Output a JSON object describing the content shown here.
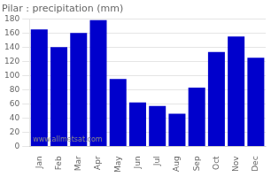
{
  "chart_data": {
    "type": "bar",
    "title": "Pilar : precipitation (mm)",
    "categories": [
      "Jan",
      "Feb",
      "Mar",
      "Apr",
      "May",
      "Jun",
      "Jul",
      "Aug",
      "Sep",
      "Oct",
      "Nov",
      "Dec"
    ],
    "values": [
      165,
      140,
      160,
      178,
      95,
      62,
      57,
      46,
      83,
      133,
      155,
      125
    ],
    "color": "#0000cc",
    "ylim": [
      0,
      180
    ],
    "yticks": [
      0,
      20,
      40,
      60,
      80,
      100,
      120,
      140,
      160,
      180
    ],
    "grid": true,
    "annotations": [
      "www.allmetsat.com"
    ]
  }
}
